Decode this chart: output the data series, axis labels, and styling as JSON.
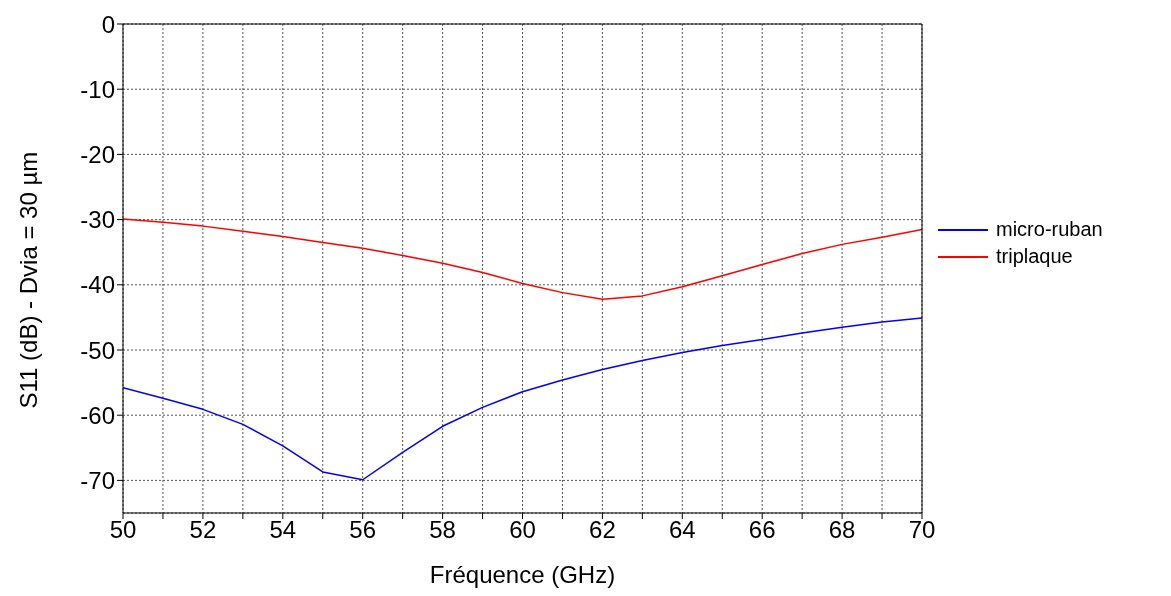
{
  "chart_data": {
    "type": "line",
    "xlabel": "Fréquence (GHz)",
    "ylabel": "S11 (dB) - Dvia = 30 µm",
    "x": [
      50,
      51,
      52,
      53,
      54,
      55,
      56,
      57,
      58,
      59,
      60,
      61,
      62,
      63,
      64,
      65,
      66,
      67,
      68,
      69,
      70
    ],
    "series": [
      {
        "name": "micro-ruban",
        "color": "#0000ff",
        "values": [
          -55.8,
          -57.4,
          -59.1,
          -61.4,
          -64.7,
          -68.7,
          -69.9,
          -65.7,
          -61.7,
          -58.8,
          -56.4,
          -54.6,
          -53.0,
          -51.6,
          -50.4,
          -49.3,
          -48.4,
          -47.4,
          -46.5,
          -45.7,
          -45.1
        ]
      },
      {
        "name": "triplaque",
        "color": "#ff0000",
        "values": [
          -29.9,
          -30.4,
          -31.0,
          -31.8,
          -32.6,
          -33.5,
          -34.4,
          -35.5,
          -36.7,
          -38.1,
          -39.8,
          -41.2,
          -42.2,
          -41.7,
          -40.3,
          -38.6,
          -36.9,
          -35.2,
          -33.8,
          -32.7,
          -31.5
        ]
      }
    ],
    "xlim": [
      50,
      70
    ],
    "xticks": [
      50,
      {
        "value": 51,
        "label": null
      },
      52,
      {
        "value": 53,
        "label": null
      },
      54,
      {
        "value": 55,
        "label": null
      },
      56,
      {
        "value": 57,
        "label": null
      },
      58,
      {
        "value": 59,
        "label": null
      },
      60,
      {
        "value": 61,
        "label": null
      },
      62,
      {
        "value": 63,
        "label": null
      },
      64,
      {
        "value": 65,
        "label": null
      },
      66,
      {
        "value": 67,
        "label": null
      },
      68,
      {
        "value": 69,
        "label": null
      },
      70
    ],
    "ylim": [
      -75,
      0
    ],
    "yticks": [
      -70,
      -60,
      -50,
      -40,
      -30,
      -20,
      -10,
      0
    ],
    "grid": true,
    "legend": "right",
    "marker": "none",
    "line_style": "solid"
  }
}
